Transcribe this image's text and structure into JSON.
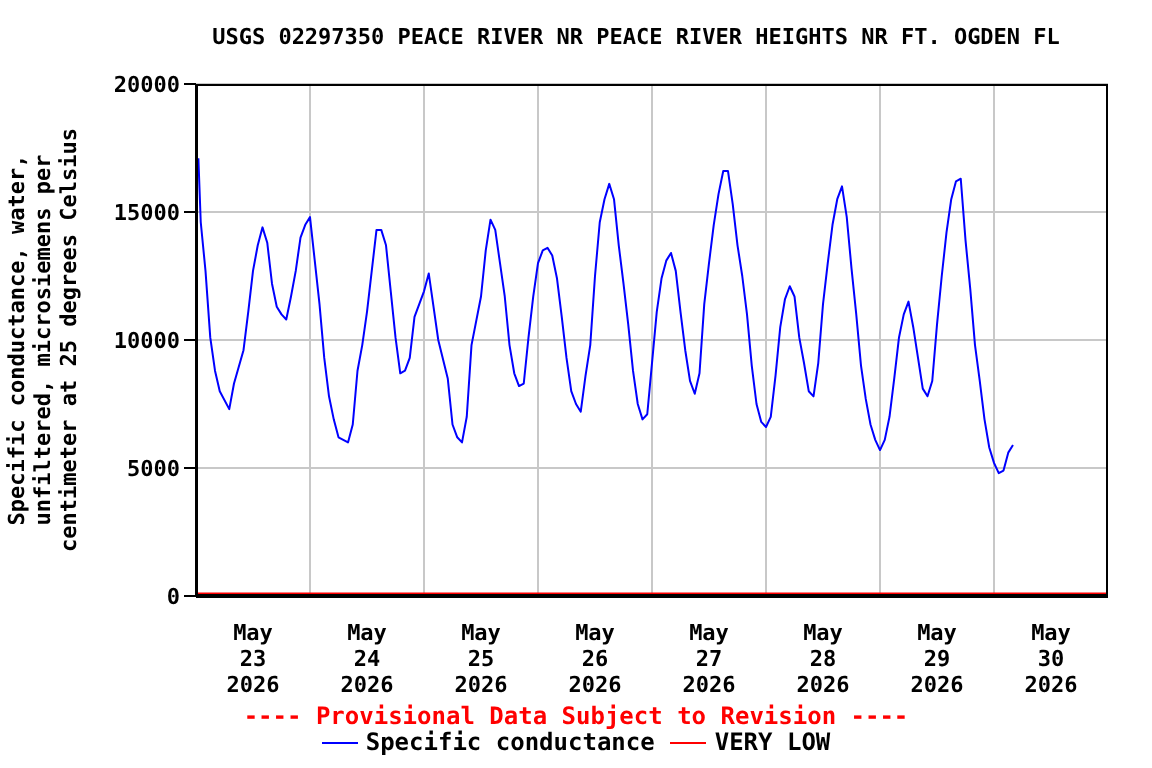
{
  "chart_data": {
    "type": "line",
    "title": "USGS 02297350 PEACE RIVER NR PEACE RIVER HEIGHTS NR FT. OGDEN FL",
    "ylabel": "Specific conductance, water, unfiltered, microsiemens per centimeter at 25 degrees Celsius",
    "annotations": [
      "---- Provisional Data Subject to Revision ----"
    ],
    "xlim": [
      "2026-05-23",
      "2026-05-31"
    ],
    "xticks": [
      {
        "value": "2026-05-23T12:00",
        "label": "May 23 2026"
      },
      {
        "value": "2026-05-24",
        "label": null
      },
      {
        "value": "2026-05-24T12:00",
        "label": "May 24 2026"
      },
      {
        "value": "2026-05-25",
        "label": null
      },
      {
        "value": "2026-05-25T12:00",
        "label": "May 25 2026"
      },
      {
        "value": "2026-05-26",
        "label": null
      },
      {
        "value": "2026-05-26T12:00",
        "label": "May 26 2026"
      },
      {
        "value": "2026-05-27",
        "label": null
      },
      {
        "value": "2026-05-27T12:00",
        "label": "May 27 2026"
      },
      {
        "value": "2026-05-28",
        "label": null
      },
      {
        "value": "2026-05-28T12:00",
        "label": "May 28 2026"
      },
      {
        "value": "2026-05-29",
        "label": null
      },
      {
        "value": "2026-05-29T12:00",
        "label": "May 29 2026"
      },
      {
        "value": "2026-05-30",
        "label": null
      },
      {
        "value": "2026-05-30T12:00",
        "label": "May 30 2026"
      }
    ],
    "ylim": [
      0,
      20000
    ],
    "yticks": [
      0,
      5000,
      10000,
      15000,
      20000
    ],
    "grid": true,
    "legend": "bottom",
    "series": [
      {
        "name": "Specific conductance",
        "color": "#0000ff",
        "x": [
          "2026-05-23T00:30",
          "2026-05-23T01:00",
          "2026-05-23T02:00",
          "2026-05-23T03:00",
          "2026-05-23T04:00",
          "2026-05-23T05:00",
          "2026-05-23T07:00",
          "2026-05-23T08:00",
          "2026-05-23T10:00",
          "2026-05-23T11:00",
          "2026-05-23T12:00",
          "2026-05-23T13:00",
          "2026-05-23T14:00",
          "2026-05-23T15:00",
          "2026-05-23T16:00",
          "2026-05-23T17:00",
          "2026-05-23T18:00",
          "2026-05-23T19:00",
          "2026-05-23T20:00",
          "2026-05-23T21:00",
          "2026-05-23T22:00",
          "2026-05-23T23:00",
          "2026-05-24T00:00",
          "2026-05-24T01:00",
          "2026-05-24T02:00",
          "2026-05-24T03:00",
          "2026-05-24T04:00",
          "2026-05-24T05:00",
          "2026-05-24T06:00",
          "2026-05-24T08:00",
          "2026-05-24T09:00",
          "2026-05-24T10:00",
          "2026-05-24T11:00",
          "2026-05-24T12:00",
          "2026-05-24T13:00",
          "2026-05-24T14:00",
          "2026-05-24T15:00",
          "2026-05-24T16:00",
          "2026-05-24T17:00",
          "2026-05-24T18:00",
          "2026-05-24T19:00",
          "2026-05-24T20:00",
          "2026-05-24T21:00",
          "2026-05-24T22:00",
          "2026-05-25T00:00",
          "2026-05-25T01:00",
          "2026-05-25T02:00",
          "2026-05-25T03:00",
          "2026-05-25T05:00",
          "2026-05-25T06:00",
          "2026-05-25T07:00",
          "2026-05-25T08:00",
          "2026-05-25T09:00",
          "2026-05-25T10:00",
          "2026-05-25T12:00",
          "2026-05-25T13:00",
          "2026-05-25T14:00",
          "2026-05-25T15:00",
          "2026-05-25T16:00",
          "2026-05-25T17:00",
          "2026-05-25T18:00",
          "2026-05-25T19:00",
          "2026-05-25T20:00",
          "2026-05-25T21:00",
          "2026-05-25T22:00",
          "2026-05-25T23:00",
          "2026-05-26T00:00",
          "2026-05-26T01:00",
          "2026-05-26T02:00",
          "2026-05-26T03:00",
          "2026-05-26T04:00",
          "2026-05-26T05:00",
          "2026-05-26T06:00",
          "2026-05-26T07:00",
          "2026-05-26T08:00",
          "2026-05-26T09:00",
          "2026-05-26T10:00",
          "2026-05-26T11:00",
          "2026-05-26T12:00",
          "2026-05-26T13:00",
          "2026-05-26T14:00",
          "2026-05-26T15:00",
          "2026-05-26T16:00",
          "2026-05-26T17:00",
          "2026-05-26T18:00",
          "2026-05-26T19:00",
          "2026-05-26T20:00",
          "2026-05-26T21:00",
          "2026-05-26T22:00",
          "2026-05-26T23:00",
          "2026-05-27T00:00",
          "2026-05-27T01:00",
          "2026-05-27T02:00",
          "2026-05-27T03:00",
          "2026-05-27T04:00",
          "2026-05-27T05:00",
          "2026-05-27T06:00",
          "2026-05-27T07:00",
          "2026-05-27T08:00",
          "2026-05-27T09:00",
          "2026-05-27T10:00",
          "2026-05-27T11:00",
          "2026-05-27T12:00",
          "2026-05-27T13:00",
          "2026-05-27T14:00",
          "2026-05-27T15:00",
          "2026-05-27T16:00",
          "2026-05-27T17:00",
          "2026-05-27T18:00",
          "2026-05-27T19:00",
          "2026-05-27T20:00",
          "2026-05-27T21:00",
          "2026-05-27T22:00",
          "2026-05-27T23:00",
          "2026-05-28T00:00",
          "2026-05-28T01:00",
          "2026-05-28T02:00",
          "2026-05-28T03:00",
          "2026-05-28T04:00",
          "2026-05-28T05:00",
          "2026-05-28T06:00",
          "2026-05-28T07:00",
          "2026-05-28T08:00",
          "2026-05-28T09:00",
          "2026-05-28T10:00",
          "2026-05-28T11:00",
          "2026-05-28T12:00",
          "2026-05-28T13:00",
          "2026-05-28T14:00",
          "2026-05-28T15:00",
          "2026-05-28T16:00",
          "2026-05-28T17:00",
          "2026-05-28T18:00",
          "2026-05-28T19:00",
          "2026-05-28T20:00",
          "2026-05-28T21:00",
          "2026-05-28T22:00",
          "2026-05-28T23:00",
          "2026-05-29T00:00",
          "2026-05-29T01:00",
          "2026-05-29T02:00",
          "2026-05-29T03:00",
          "2026-05-29T04:00",
          "2026-05-29T05:00",
          "2026-05-29T06:00",
          "2026-05-29T07:00",
          "2026-05-29T08:00",
          "2026-05-29T09:00",
          "2026-05-29T10:00",
          "2026-05-29T11:00",
          "2026-05-29T12:00",
          "2026-05-29T13:00",
          "2026-05-29T14:00",
          "2026-05-29T15:00",
          "2026-05-29T16:00",
          "2026-05-29T17:00",
          "2026-05-29T18:00",
          "2026-05-29T19:00",
          "2026-05-29T20:00",
          "2026-05-29T21:00",
          "2026-05-29T22:00",
          "2026-05-29T23:00",
          "2026-05-30T00:00",
          "2026-05-30T01:00",
          "2026-05-30T02:00",
          "2026-05-30T03:00",
          "2026-05-30T04:00"
        ],
        "values": [
          17100,
          14600,
          12700,
          10100,
          8800,
          8000,
          7300,
          8300,
          9600,
          11100,
          12700,
          13700,
          14400,
          13800,
          12200,
          11300,
          11000,
          10800,
          11700,
          12700,
          14000,
          14500,
          14800,
          13100,
          11400,
          9300,
          7800,
          6900,
          6200,
          6000,
          6700,
          8800,
          9800,
          11100,
          12700,
          14300,
          14300,
          13700,
          11900,
          10100,
          8700,
          8800,
          9300,
          10900,
          11900,
          12600,
          11300,
          10000,
          8500,
          6700,
          6200,
          6000,
          7000,
          9800,
          11700,
          13500,
          14700,
          14300,
          13000,
          11700,
          9800,
          8700,
          8200,
          8300,
          10100,
          11700,
          13000,
          13500,
          13600,
          13300,
          12400,
          10900,
          9300,
          8000,
          7500,
          7200,
          8600,
          9800,
          12500,
          14600,
          15500,
          16100,
          15500,
          13700,
          12200,
          10600,
          8800,
          7500,
          6900,
          7100,
          9100,
          11100,
          12400,
          13100,
          13400,
          12700,
          11100,
          9600,
          8400,
          7900,
          8700,
          11400,
          13000,
          14500,
          15700,
          16600,
          16600,
          15300,
          13700,
          12500,
          11000,
          9000,
          7500,
          6800,
          6600,
          7000,
          8600,
          10500,
          11600,
          12100,
          11700,
          10100,
          9100,
          8000,
          7800,
          9100,
          11400,
          13000,
          14500,
          15500,
          16000,
          14800,
          12800,
          11000,
          9000,
          7700,
          6700,
          6100,
          5700,
          6100,
          7000,
          8500,
          10100,
          11000,
          11500,
          10500,
          9300,
          8100,
          7800,
          8400,
          10600,
          12500,
          14200,
          15500,
          16200,
          16300,
          13900,
          12000,
          9800,
          8400,
          6900,
          5800,
          5200,
          4800,
          4900,
          5600,
          5900
        ]
      },
      {
        "name": "VERY LOW",
        "color": "#ff0000",
        "x": [
          "2026-05-23",
          "2026-05-31"
        ],
        "values": [
          100,
          100
        ]
      }
    ]
  }
}
